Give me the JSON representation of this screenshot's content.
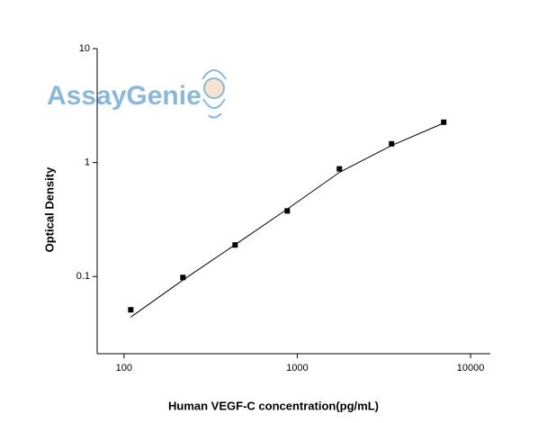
{
  "chart_data": {
    "type": "scatter",
    "watermark": "AssayGenie",
    "x_label": "Human VEGF-C concentration(pg/mL)",
    "y_label": "Optical Density",
    "x": [
      109.4,
      218.75,
      437.5,
      875,
      1750,
      3500,
      7000
    ],
    "series": [
      {
        "mode": "markers",
        "color": "#000000",
        "values": [
          0.051,
          0.098,
          0.189,
          0.376,
          0.88,
          1.46,
          2.26
        ]
      },
      {
        "mode": "line",
        "color": "#000000",
        "values": [
          0.044,
          0.093,
          0.19,
          0.39,
          0.82,
          1.41,
          2.22
        ]
      }
    ],
    "xlim": [
      70,
      13000
    ],
    "ylim": [
      0.021,
      10
    ],
    "xticks": [
      100,
      1000,
      10000
    ],
    "yticks": [
      0.1,
      1,
      10
    ],
    "xlog": true,
    "ylog": true
  }
}
